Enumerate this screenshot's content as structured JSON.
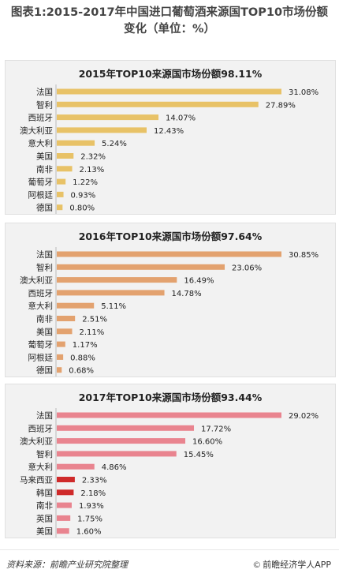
{
  "page_title": "图表1:2015-2017年中国进口葡萄酒来源国TOP10市场份额变化（单位：%）",
  "footer": {
    "source": "资料来源：前瞻产业研究院整理",
    "copyright_symbol": "©",
    "brand": "前瞻经济学人APP"
  },
  "colors": {
    "panel1_bar": "#e8c267",
    "panel2_bar": "#e3a26f",
    "panel3_bar": "#e9848f",
    "panel3_highlight": "#cf2a2a",
    "panel_background": "#f2f2f2"
  },
  "chart_data": [
    {
      "type": "bar",
      "orientation": "horizontal",
      "title": "2015年TOP10来源国市场份额98.11%",
      "categories": [
        "法国",
        "智利",
        "西班牙",
        "澳大利亚",
        "意大利",
        "美国",
        "南非",
        "葡萄牙",
        "阿根廷",
        "德国"
      ],
      "values": [
        31.08,
        27.89,
        14.07,
        12.43,
        5.24,
        2.32,
        2.13,
        1.22,
        0.93,
        0.8
      ],
      "labels": [
        "31.08%",
        "27.89%",
        "14.07%",
        "12.43%",
        "5.24%",
        "2.32%",
        "2.13%",
        "1.22%",
        "0.93%",
        "0.80%"
      ],
      "color": "#e8c267"
    },
    {
      "type": "bar",
      "orientation": "horizontal",
      "title": "2016年TOP10来源国市场份额97.64%",
      "categories": [
        "法国",
        "智利",
        "澳大利亚",
        "西班牙",
        "意大利",
        "南非",
        "美国",
        "葡萄牙",
        "阿根廷",
        "德国"
      ],
      "values": [
        30.85,
        23.06,
        16.49,
        14.78,
        5.11,
        2.51,
        2.11,
        1.17,
        0.88,
        0.68
      ],
      "labels": [
        "30.85%",
        "23.06%",
        "16.49%",
        "14.78%",
        "5.11%",
        "2.51%",
        "2.11%",
        "1.17%",
        "0.88%",
        "0.68%"
      ],
      "color": "#e3a26f"
    },
    {
      "type": "bar",
      "orientation": "horizontal",
      "title": "2017年TOP10来源国市场份额93.44%",
      "categories": [
        "法国",
        "西班牙",
        "澳大利亚",
        "智利",
        "意大利",
        "马来西亚",
        "韩国",
        "南非",
        "英国",
        "美国"
      ],
      "values": [
        29.02,
        17.72,
        16.6,
        15.45,
        4.86,
        2.33,
        2.18,
        1.93,
        1.75,
        1.6
      ],
      "labels": [
        "29.02%",
        "17.72%",
        "16.60%",
        "15.45%",
        "4.86%",
        "2.33%",
        "2.18%",
        "1.93%",
        "1.75%",
        "1.60%"
      ],
      "color": "#e9848f",
      "highlight_categories": [
        "马来西亚",
        "韩国"
      ],
      "highlight_color": "#cf2a2a"
    }
  ]
}
